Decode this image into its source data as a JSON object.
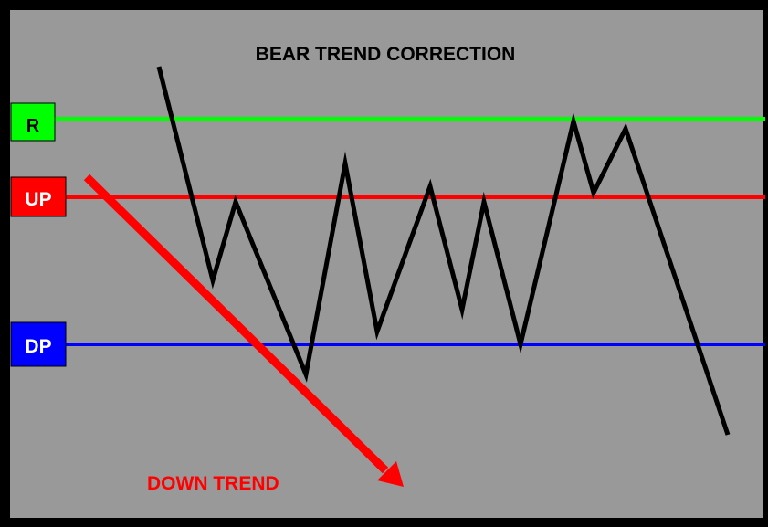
{
  "diagram": {
    "title": "BEAR TREND CORRECTION",
    "colors": {
      "frame": "#000000",
      "background": "#999999",
      "price_line": "#000000",
      "title_text": "#000000"
    },
    "levels": [
      {
        "key": "r",
        "label": "R",
        "color": "#00ff00",
        "text_color": "#000000"
      },
      {
        "key": "up",
        "label": "UP",
        "color": "#ff0000",
        "text_color": "#ffffff"
      },
      {
        "key": "dp",
        "label": "DP",
        "color": "#0000ff",
        "text_color": "#ffffff"
      }
    ],
    "trend_arrow": {
      "label": "DOWN TREND",
      "color": "#ff0000",
      "direction": "down"
    }
  }
}
